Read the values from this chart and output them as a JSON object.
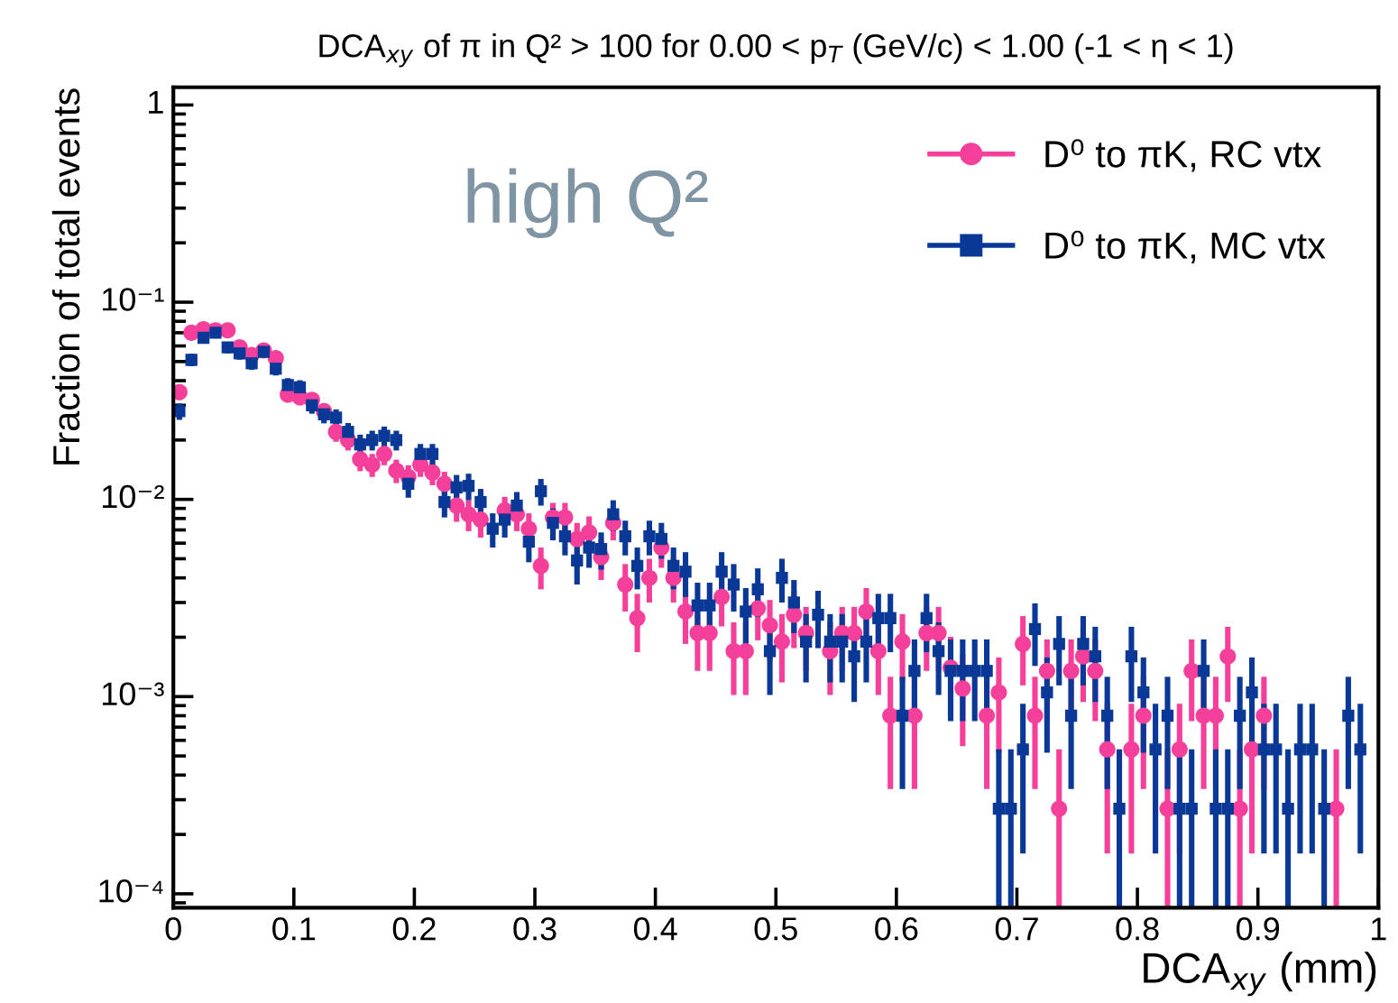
{
  "chart_data": {
    "type": "scatter",
    "title": "DCA$_{xy}$ of π in Q² > 100 for 0.00 < p$_{T}$ (GeV/c) < 1.00 (-1 < η < 1)",
    "xlabel": "DCA$_{xy}$ (mm)",
    "ylabel": "Fraction of total events",
    "annotations": [
      "high Q²"
    ],
    "log": "y",
    "grid": false,
    "legend": "top right",
    "xlim": [
      0,
      1
    ],
    "xticks": [
      0,
      0.1,
      0.2,
      0.3,
      0.4,
      0.5,
      0.6,
      0.7,
      0.8,
      0.9,
      1
    ],
    "ylim": [
      8.5e-05,
      1.23
    ],
    "yticks": [
      {
        "value": 0.0001,
        "label": "10⁻⁴"
      },
      {
        "value": 0.001,
        "label": "10⁻³"
      },
      {
        "value": 0.01,
        "label": "10⁻²"
      },
      {
        "value": 0.1,
        "label": "10⁻¹"
      },
      1
    ],
    "x": [
      0.005,
      0.015,
      0.025,
      0.035,
      0.045,
      0.055,
      0.065,
      0.075,
      0.085,
      0.095,
      0.105,
      0.115,
      0.125,
      0.135,
      0.145,
      0.155,
      0.165,
      0.175,
      0.185,
      0.195,
      0.205,
      0.215,
      0.225,
      0.235,
      0.245,
      0.255,
      0.265,
      0.275,
      0.285,
      0.295,
      0.305,
      0.315,
      0.325,
      0.335,
      0.345,
      0.355,
      0.365,
      0.375,
      0.385,
      0.395,
      0.405,
      0.415,
      0.425,
      0.435,
      0.445,
      0.455,
      0.465,
      0.475,
      0.485,
      0.495,
      0.505,
      0.515,
      0.525,
      0.535,
      0.545,
      0.555,
      0.565,
      0.575,
      0.585,
      0.595,
      0.605,
      0.615,
      0.625,
      0.635,
      0.645,
      0.655,
      0.665,
      0.675,
      0.685,
      0.695,
      0.705,
      0.715,
      0.725,
      0.735,
      0.745,
      0.755,
      0.765,
      0.775,
      0.785,
      0.795,
      0.805,
      0.815,
      0.825,
      0.835,
      0.845,
      0.855,
      0.865,
      0.875,
      0.885,
      0.895,
      0.905,
      0.915,
      0.925,
      0.935,
      0.945,
      0.955,
      0.965,
      0.975,
      0.985
    ],
    "series": [
      {
        "name": "D⁰ to πK, RC vtx",
        "color": "#f5409b",
        "marker": "circle",
        "values": [
          0.035,
          0.07,
          0.073,
          0.072,
          0.072,
          0.059,
          0.054,
          0.057,
          0.052,
          0.034,
          0.033,
          0.032,
          0.028,
          0.022,
          0.02,
          0.016,
          0.015,
          0.017,
          0.014,
          0.013,
          0.015,
          0.0137,
          0.012,
          0.0093,
          0.0084,
          0.0079,
          null,
          0.0088,
          0.0084,
          0.0071,
          0.0046,
          0.0081,
          0.0081,
          0.0063,
          0.0068,
          0.0051,
          0.0076,
          0.0037,
          0.0025,
          0.004,
          0.0057,
          0.004,
          0.0027,
          0.0021,
          0.0021,
          0.0032,
          0.0017,
          0.0017,
          0.0028,
          0.0023,
          0.0019,
          0.0026,
          0.0021,
          null,
          0.0017,
          0.0021,
          0.0021,
          0.0027,
          0.0017,
          0.0008,
          0.0019,
          0.0008,
          0.0021,
          0.0021,
          0.0014,
          0.0011,
          null,
          0.0008,
          0.00105,
          null,
          0.00185,
          0.0008,
          0.00135,
          0.00027,
          0.00135,
          0.0016,
          0.00135,
          0.00054,
          null,
          0.00054,
          0.0008,
          null,
          0.00027,
          0.00054,
          0.00135,
          0.0008,
          0.0008,
          0.0016,
          0.00027,
          0.00054,
          0.0008,
          null,
          null,
          null,
          null,
          null,
          0.00027,
          null,
          null
        ],
        "errors": [
          0.0031,
          0.0043,
          0.0044,
          0.0044,
          0.0044,
          0.004,
          0.0038,
          0.0039,
          0.0037,
          0.003,
          0.003,
          0.0029,
          0.0027,
          0.0024,
          0.0023,
          0.0021,
          0.002,
          0.0021,
          0.0019,
          0.0019,
          0.002,
          0.0019,
          0.0018,
          0.0016,
          0.0015,
          0.0015,
          null,
          0.0015,
          0.0015,
          0.0014,
          0.0011,
          0.0015,
          0.0015,
          0.0013,
          0.0014,
          0.0012,
          0.0014,
          0.001,
          0.00082,
          0.001,
          0.0012,
          0.001,
          0.00085,
          0.00075,
          0.00075,
          0.00093,
          0.00068,
          0.00068,
          0.00087,
          0.00079,
          0.00072,
          0.00084,
          0.00075,
          null,
          0.00068,
          0.00075,
          0.00075,
          0.00085,
          0.00068,
          0.00046,
          0.00072,
          0.00046,
          0.00075,
          0.00075,
          0.00061,
          0.00054,
          null,
          0.00046,
          0.00053,
          null,
          0.00071,
          0.00046,
          0.0006,
          [
            8.5e-05,
            0.00054
          ],
          0.0006,
          0.00066,
          0.0006,
          0.00038,
          null,
          0.00038,
          0.00046,
          null,
          [
            8.5e-05,
            0.00054
          ],
          0.00038,
          0.0006,
          0.00046,
          0.00046,
          0.00066,
          [
            8.5e-05,
            0.00054
          ],
          0.00038,
          0.00046,
          null,
          null,
          null,
          null,
          null,
          [
            8.5e-05,
            0.00054
          ],
          null,
          null
        ]
      },
      {
        "name": "D⁰ to πK, MC vtx",
        "color": "#0a3896",
        "marker": "square",
        "values": [
          0.028,
          0.051,
          0.066,
          0.07,
          0.059,
          0.055,
          0.049,
          0.056,
          0.046,
          0.038,
          0.037,
          0.03,
          0.027,
          0.026,
          0.022,
          0.019,
          0.02,
          0.021,
          0.02,
          0.012,
          0.017,
          0.017,
          0.0097,
          0.0115,
          0.0117,
          0.0097,
          0.0071,
          0.0079,
          0.0093,
          0.0061,
          0.011,
          0.0076,
          0.0065,
          0.0049,
          0.0057,
          0.0056,
          0.0084,
          0.0065,
          0.0046,
          0.0065,
          0.0063,
          0.0046,
          0.0043,
          0.0029,
          0.0029,
          0.0043,
          0.0037,
          0.0027,
          0.0035,
          0.0017,
          0.004,
          0.003,
          0.0019,
          0.0026,
          0.0019,
          0.0019,
          0.0016,
          0.0019,
          0.0025,
          0.0025,
          0.0008,
          0.00135,
          0.0025,
          0.0017,
          0.00135,
          0.00135,
          0.00135,
          0.00135,
          0.00027,
          0.00027,
          0.00054,
          0.0022,
          0.00105,
          0.00185,
          0.0008,
          0.00185,
          0.0016,
          0.0008,
          0.00027,
          0.0016,
          0.00105,
          0.00054,
          0.0008,
          0.00027,
          0.00027,
          0.00135,
          0.00027,
          0.00027,
          0.0008,
          0.00105,
          0.00054,
          0.00054,
          0.00027,
          0.00054,
          0.00054,
          0.00027,
          null,
          0.0008,
          0.00054
        ],
        "errors": [
          0.0027,
          0.0037,
          0.0042,
          0.0043,
          0.004,
          0.0039,
          0.0036,
          0.0039,
          0.0035,
          0.0032,
          0.0032,
          0.0028,
          0.0027,
          0.0026,
          0.0024,
          0.0023,
          0.0023,
          0.0024,
          0.0023,
          0.0018,
          0.0021,
          0.0021,
          0.0016,
          0.0018,
          0.0018,
          0.0016,
          0.0014,
          0.0015,
          0.0016,
          0.0013,
          0.0017,
          0.0014,
          0.0013,
          0.0012,
          0.0012,
          0.0012,
          0.0015,
          0.0013,
          0.0011,
          0.0013,
          0.0013,
          0.0011,
          0.0011,
          0.00088,
          0.00088,
          0.0011,
          0.001,
          0.00085,
          0.00097,
          0.00068,
          0.001,
          0.0009,
          0.00072,
          0.00084,
          0.00072,
          0.00072,
          0.00066,
          0.00072,
          0.00082,
          0.00082,
          0.00046,
          0.0006,
          0.00082,
          0.00068,
          0.0006,
          0.0006,
          0.0006,
          0.0006,
          [
            8.5e-05,
            0.00054
          ],
          [
            8.5e-05,
            0.00054
          ],
          0.00038,
          0.00077,
          0.00053,
          0.00071,
          0.00046,
          0.00071,
          0.00066,
          0.00046,
          [
            8.5e-05,
            0.00054
          ],
          0.00066,
          0.00053,
          0.00038,
          0.00046,
          [
            8.5e-05,
            0.00054
          ],
          [
            8.5e-05,
            0.00054
          ],
          0.0006,
          [
            8.5e-05,
            0.00054
          ],
          [
            8.5e-05,
            0.00054
          ],
          0.00046,
          0.00053,
          0.00038,
          0.00038,
          [
            8.5e-05,
            0.00054
          ],
          0.00038,
          0.00038,
          [
            8.5e-05,
            0.00054
          ],
          null,
          0.00046,
          0.00038
        ]
      }
    ]
  }
}
